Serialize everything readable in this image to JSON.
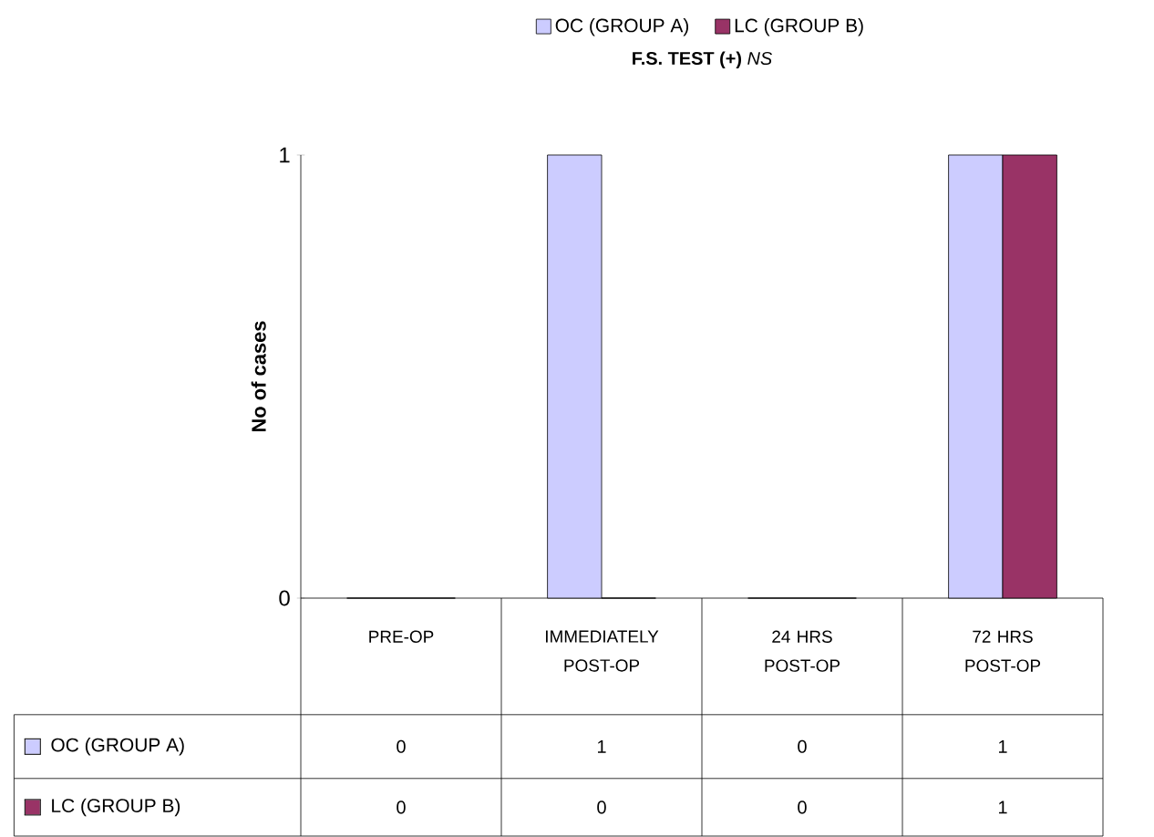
{
  "chart_data": {
    "type": "bar",
    "title": "**F.S. TEST (+)** *NS*",
    "ylabel": "No of cases",
    "categories": [
      "PRE-OP",
      "IMMEDIATELY POST-OP",
      "24 HRS POST-OP",
      "72 HRS POST-OP"
    ],
    "series": [
      {
        "name": "OC (GROUP A)",
        "color": "#ccccff",
        "values": [
          0,
          1,
          0,
          1
        ]
      },
      {
        "name": "LC (GROUP B)",
        "color": "#993366",
        "values": [
          0,
          0,
          0,
          1
        ]
      }
    ],
    "ylim": [
      0,
      1
    ],
    "yticks": [
      0,
      1
    ],
    "legend": "top",
    "data_labels": true
  }
}
